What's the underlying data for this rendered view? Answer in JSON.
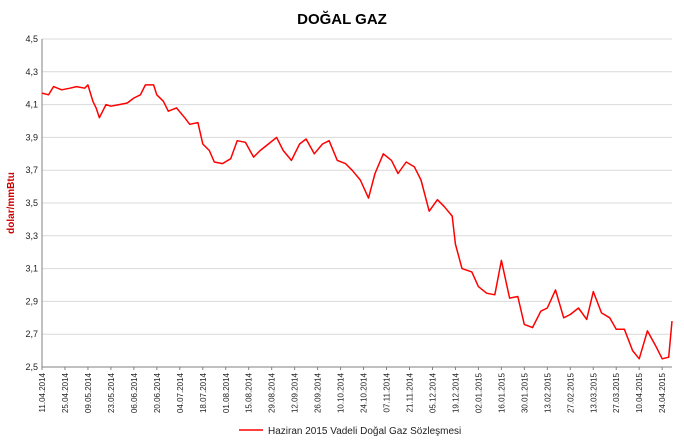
{
  "chart_data": {
    "type": "line",
    "title": "DOĞAL GAZ",
    "ylabel": "dolar/mmBtu",
    "ylim": [
      2.5,
      4.5
    ],
    "yticks": [
      "2,5",
      "2,7",
      "2,9",
      "3,1",
      "3,3",
      "3,5",
      "3,7",
      "3,9",
      "4,1",
      "4,3",
      "4,5"
    ],
    "ytick_values": [
      2.5,
      2.7,
      2.9,
      3.1,
      3.3,
      3.5,
      3.7,
      3.9,
      4.1,
      4.3,
      4.5
    ],
    "xticks": [
      "11.04.2014",
      "25.04.2014",
      "09.05.2014",
      "23.05.2014",
      "06.06.2014",
      "20.06.2014",
      "04.07.2014",
      "18.07.2014",
      "01.08.2014",
      "15.08.2014",
      "29.08.2014",
      "12.09.2014",
      "26.09.2014",
      "10.10.2014",
      "24.10.2014",
      "07.11.2014",
      "21.11.2014",
      "05.12.2014",
      "19.12.2014",
      "02.01.2015",
      "16.01.2015",
      "30.01.2015",
      "13.02.2015",
      "27.02.2015",
      "13.03.2015",
      "27.03.2015",
      "10.04.2015",
      "24.04.2015"
    ],
    "x_start": "11.04.2014",
    "x_end": "30.04.2015",
    "grid": true,
    "legend_position": "bottom",
    "series": [
      {
        "name": "Haziran 2015 Vadeli Doğal Gaz Sözleşmesi",
        "color": "#ff0000",
        "x": [
          "11.04.2014",
          "15.04.2014",
          "18.04.2014",
          "23.04.2014",
          "28.04.2014",
          "02.05.2014",
          "07.05.2014",
          "09.05.2014",
          "12.05.2014",
          "14.05.2014",
          "16.05.2014",
          "20.05.2014",
          "23.05.2014",
          "28.05.2014",
          "02.06.2014",
          "06.06.2014",
          "10.06.2014",
          "13.06.2014",
          "18.06.2014",
          "20.06.2014",
          "24.06.2014",
          "27.06.2014",
          "02.07.2014",
          "07.07.2014",
          "10.07.2014",
          "15.07.2014",
          "18.07.2014",
          "22.07.2014",
          "25.07.2014",
          "30.07.2014",
          "04.08.2014",
          "08.08.2014",
          "13.08.2014",
          "18.08.2014",
          "22.08.2014",
          "27.08.2014",
          "01.09.2014",
          "05.09.2014",
          "10.09.2014",
          "15.09.2014",
          "19.09.2014",
          "24.09.2014",
          "29.09.2014",
          "03.10.2014",
          "08.10.2014",
          "13.10.2014",
          "17.10.2014",
          "22.10.2014",
          "27.10.2014",
          "31.10.2014",
          "05.11.2014",
          "10.11.2014",
          "14.11.2014",
          "19.11.2014",
          "24.11.2014",
          "28.11.2014",
          "03.12.2014",
          "08.12.2014",
          "12.12.2014",
          "17.12.2014",
          "19.12.2014",
          "23.12.2014",
          "29.12.2014",
          "02.01.2015",
          "07.01.2015",
          "12.01.2015",
          "16.01.2015",
          "21.01.2015",
          "26.01.2015",
          "30.01.2015",
          "04.02.2015",
          "09.02.2015",
          "13.02.2015",
          "18.02.2015",
          "23.02.2015",
          "27.02.2015",
          "04.03.2015",
          "09.03.2015",
          "13.03.2015",
          "18.03.2015",
          "23.03.2015",
          "27.03.2015",
          "01.04.2015",
          "06.04.2015",
          "10.04.2015",
          "15.04.2015",
          "20.04.2015",
          "24.04.2015",
          "28.04.2015",
          "30.04.2015"
        ],
        "values": [
          4.17,
          4.16,
          4.21,
          4.19,
          4.2,
          4.21,
          4.2,
          4.22,
          4.12,
          4.08,
          4.02,
          4.1,
          4.09,
          4.1,
          4.11,
          4.14,
          4.16,
          4.22,
          4.22,
          4.16,
          4.12,
          4.06,
          4.08,
          4.02,
          3.98,
          3.99,
          3.86,
          3.82,
          3.75,
          3.74,
          3.77,
          3.88,
          3.87,
          3.78,
          3.82,
          3.86,
          3.9,
          3.82,
          3.76,
          3.86,
          3.89,
          3.8,
          3.86,
          3.88,
          3.76,
          3.74,
          3.7,
          3.64,
          3.53,
          3.68,
          3.8,
          3.76,
          3.68,
          3.75,
          3.72,
          3.64,
          3.45,
          3.52,
          3.48,
          3.42,
          3.25,
          3.1,
          3.08,
          2.99,
          2.95,
          2.94,
          3.15,
          2.92,
          2.93,
          2.76,
          2.74,
          2.84,
          2.86,
          2.97,
          2.8,
          2.82,
          2.86,
          2.79,
          2.96,
          2.83,
          2.8,
          2.73,
          2.73,
          2.6,
          2.55,
          2.72,
          2.63,
          2.55,
          2.56,
          2.78
        ]
      }
    ]
  }
}
